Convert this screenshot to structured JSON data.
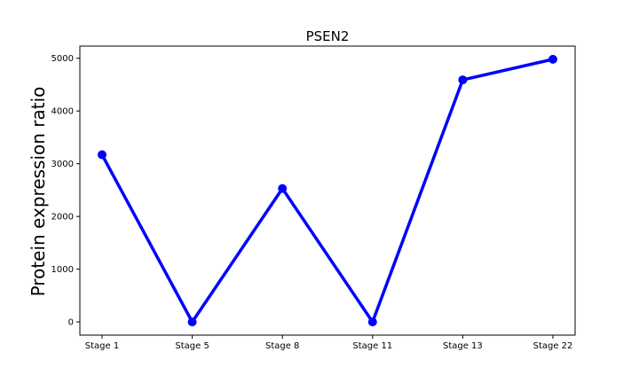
{
  "chart_data": {
    "type": "line",
    "title": "PSEN2",
    "xlabel": "",
    "ylabel": "Protein expression ratio",
    "categories": [
      "Stage 1",
      "Stage 5",
      "Stage 8",
      "Stage 11",
      "Stage 13",
      "Stage 22"
    ],
    "series": [
      {
        "values": [
          3170,
          0,
          2530,
          0,
          4590,
          4980
        ]
      }
    ],
    "ylim": [
      -250,
      5230
    ],
    "yticks": [
      0,
      1000,
      2000,
      3000,
      4000,
      5000
    ],
    "grid": false,
    "line_color": "#0000ff",
    "marker": "circle"
  }
}
